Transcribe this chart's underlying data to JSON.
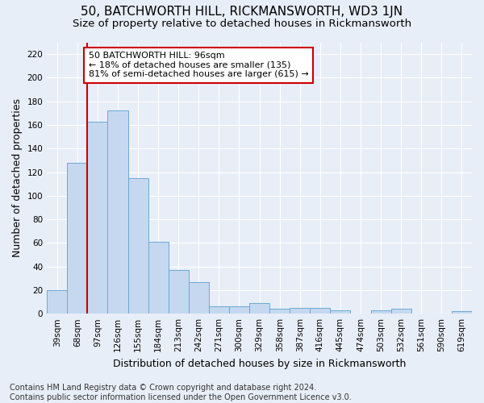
{
  "title": "50, BATCHWORTH HILL, RICKMANSWORTH, WD3 1JN",
  "subtitle": "Size of property relative to detached houses in Rickmansworth",
  "xlabel": "Distribution of detached houses by size in Rickmansworth",
  "ylabel": "Number of detached properties",
  "categories": [
    "39sqm",
    "68sqm",
    "97sqm",
    "126sqm",
    "155sqm",
    "184sqm",
    "213sqm",
    "242sqm",
    "271sqm",
    "300sqm",
    "329sqm",
    "358sqm",
    "387sqm",
    "416sqm",
    "445sqm",
    "474sqm",
    "503sqm",
    "532sqm",
    "561sqm",
    "590sqm",
    "619sqm"
  ],
  "values": [
    20,
    128,
    163,
    172,
    115,
    61,
    37,
    27,
    6,
    6,
    9,
    4,
    5,
    5,
    3,
    0,
    3,
    4,
    0,
    0,
    2
  ],
  "bar_color": "#c5d8f0",
  "bar_edge_color": "#6aaad4",
  "vline_color": "#cc0000",
  "vline_x": 1.5,
  "annotation_text": "50 BATCHWORTH HILL: 96sqm\n← 18% of detached houses are smaller (135)\n81% of semi-detached houses are larger (615) →",
  "annotation_box_facecolor": "#ffffff",
  "annotation_box_edgecolor": "#cc0000",
  "ylim": [
    0,
    230
  ],
  "yticks": [
    0,
    20,
    40,
    60,
    80,
    100,
    120,
    140,
    160,
    180,
    200,
    220
  ],
  "background_color": "#e8eef7",
  "plot_bg_color": "#e8eef7",
  "grid_color": "#ffffff",
  "title_fontsize": 11,
  "subtitle_fontsize": 9.5,
  "ylabel_fontsize": 9,
  "xlabel_fontsize": 9,
  "tick_fontsize": 7.5,
  "annotation_fontsize": 8,
  "footer_fontsize": 7,
  "footer_line1": "Contains HM Land Registry data © Crown copyright and database right 2024.",
  "footer_line2": "Contains public sector information licensed under the Open Government Licence v3.0."
}
